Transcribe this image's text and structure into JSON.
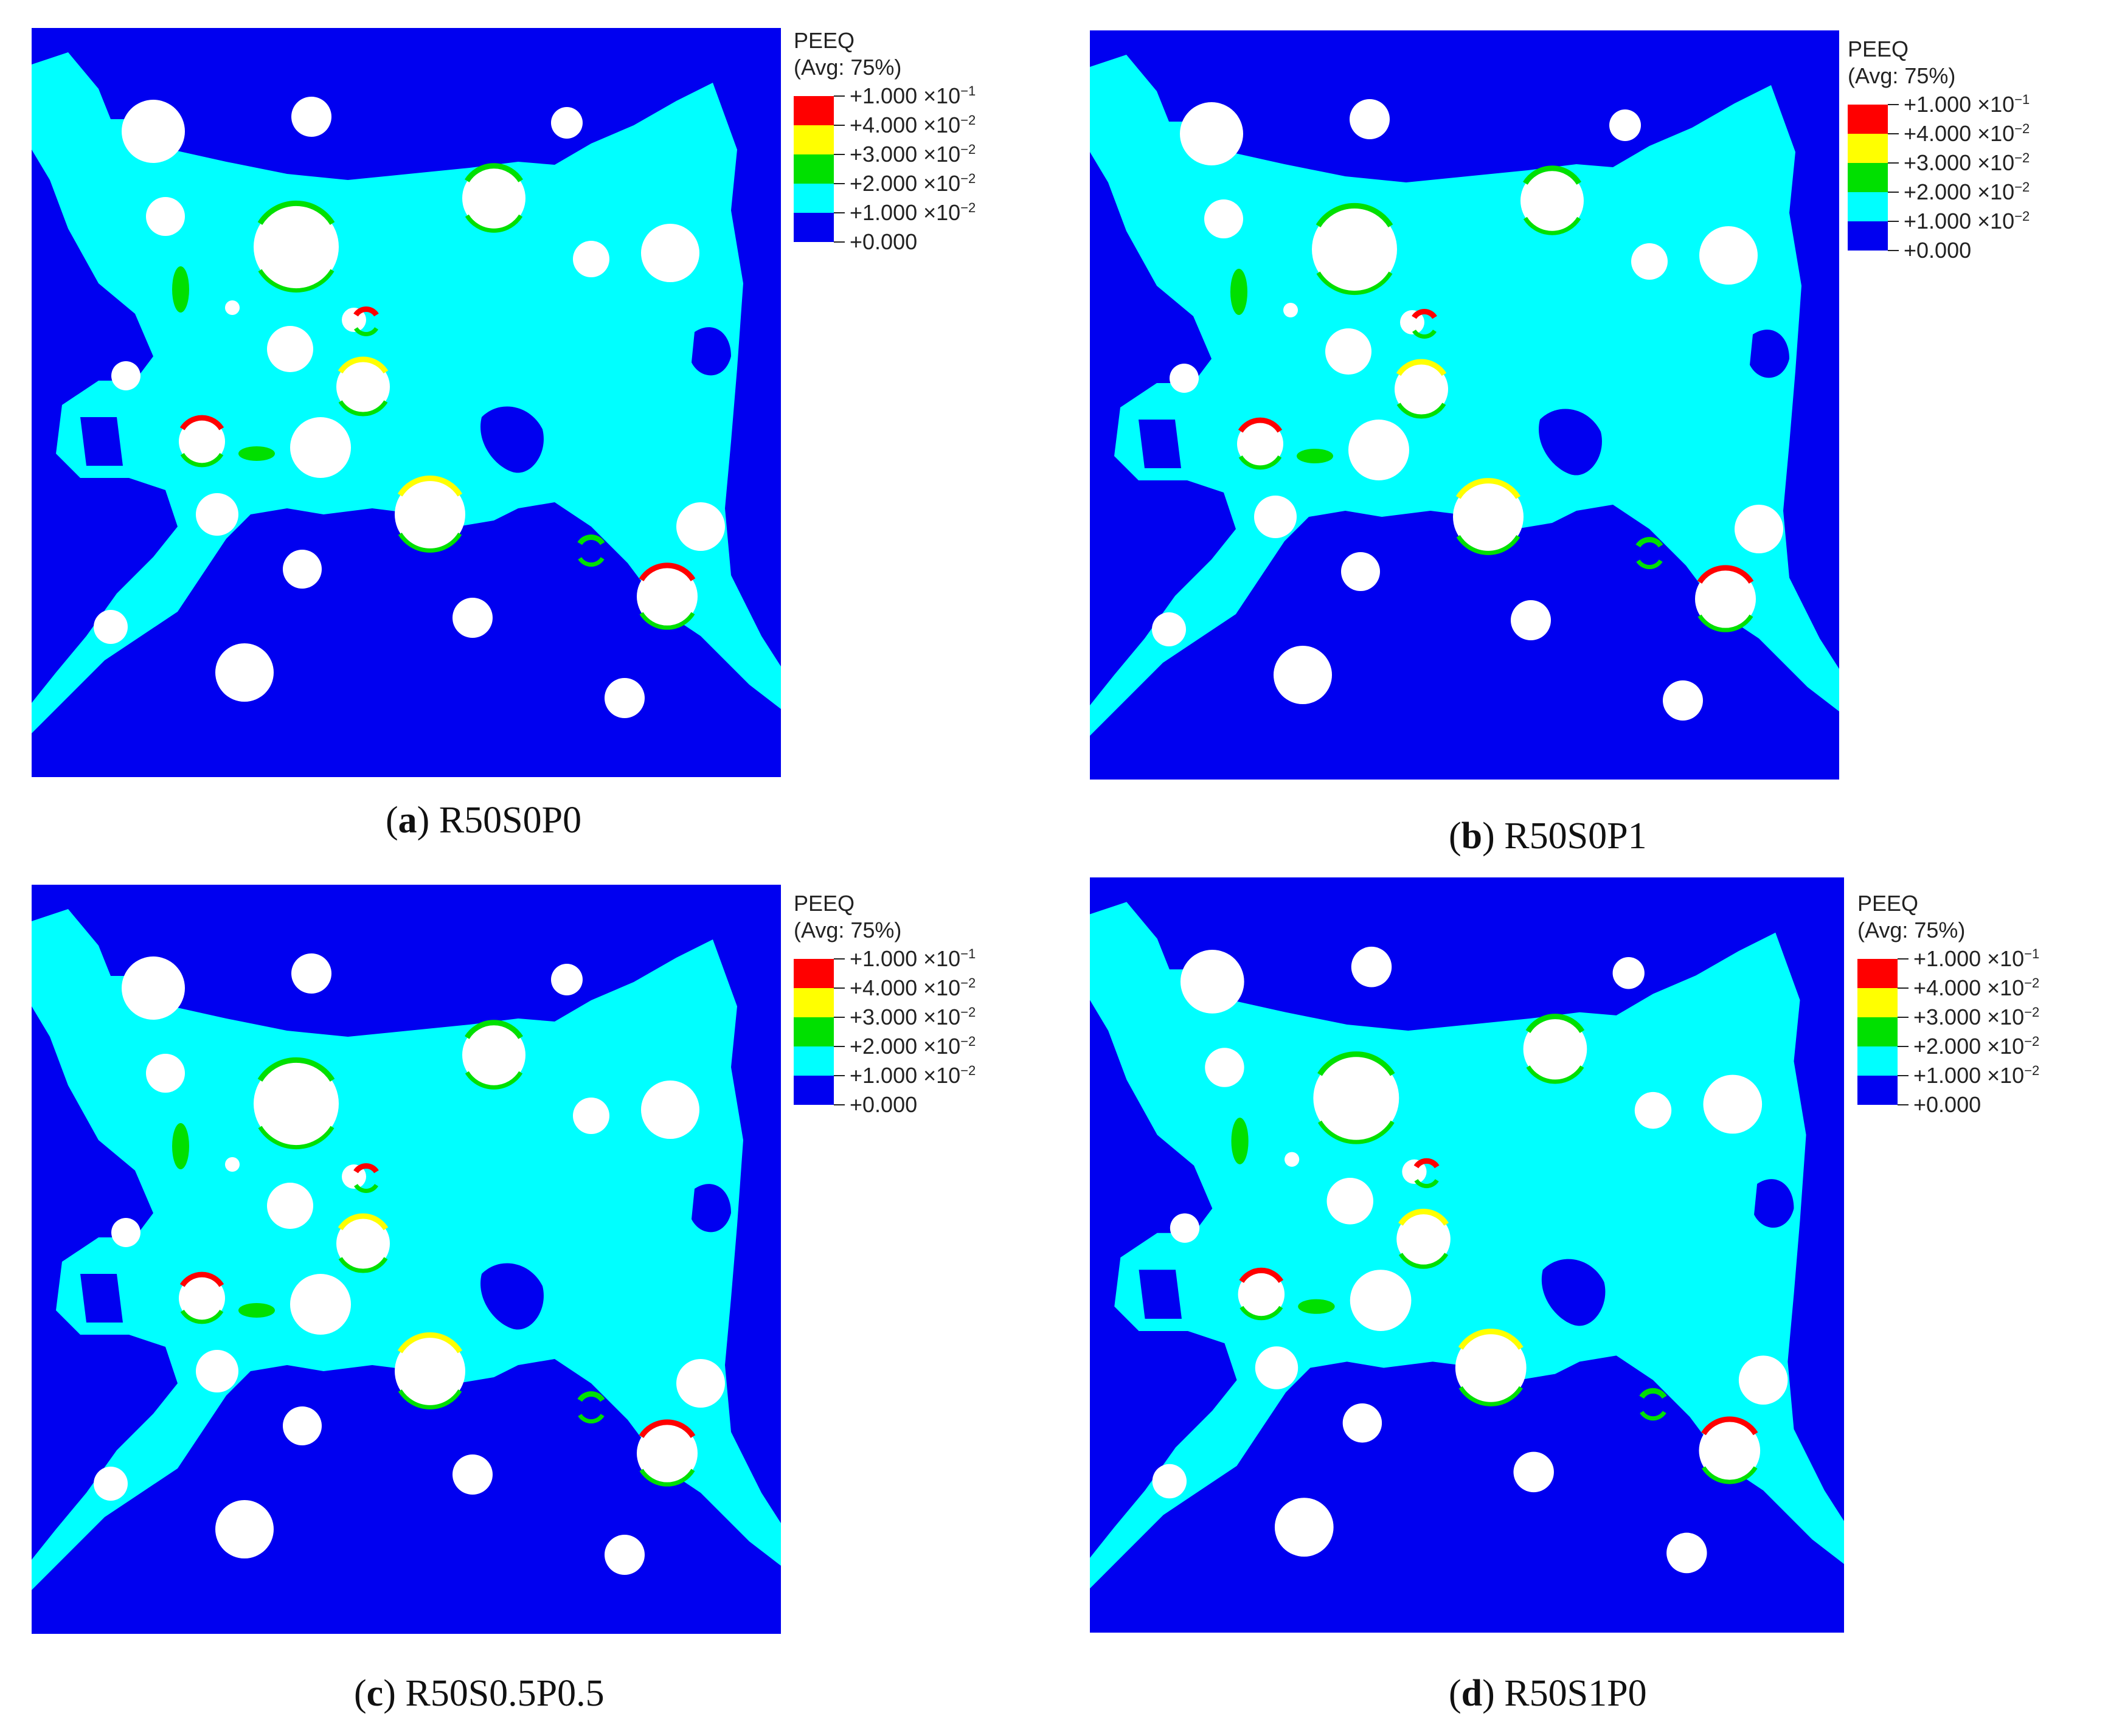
{
  "colors": {
    "background_dark": "#0000f0",
    "strain_low": "#00ffff",
    "strain_mid": "#00e000",
    "strain_high": "#ffff00",
    "strain_max": "#ff0000",
    "aggregate": "#ffffff"
  },
  "legend": {
    "title": "PEEQ",
    "subtitle": "(Avg: 75%)",
    "entries": [
      {
        "mantissa": "+1.000",
        "exp": "−1",
        "color": "#ff0000"
      },
      {
        "mantissa": "+4.000",
        "exp": "−2",
        "color": "#ffff00"
      },
      {
        "mantissa": "+3.000",
        "exp": "−2",
        "color": "#00e000"
      },
      {
        "mantissa": "+2.000",
        "exp": "−2",
        "color": "#00ffff"
      },
      {
        "mantissa": "+1.000",
        "exp": "−2",
        "color": "#0000f0"
      }
    ],
    "last_label": "+0.000",
    "times_sign": "×10"
  },
  "panels": [
    {
      "letter": "a",
      "label": "R50S0P0"
    },
    {
      "letter": "b",
      "label": "R50S0P1"
    },
    {
      "letter": "c",
      "label": "R50S0.5P0.5"
    },
    {
      "letter": "d",
      "label": "R50S1P0"
    }
  ]
}
